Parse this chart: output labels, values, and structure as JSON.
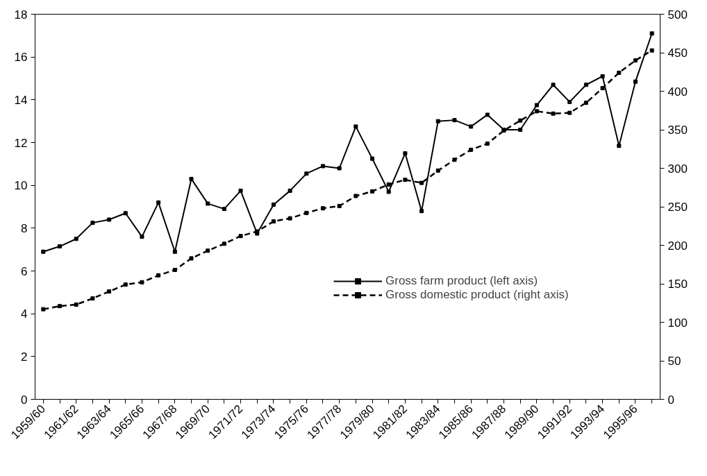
{
  "chart_data": {
    "type": "line",
    "categories": [
      "1959/60",
      null,
      "1961/62",
      null,
      "1963/64",
      null,
      "1965/66",
      null,
      "1967/68",
      null,
      "1969/70",
      null,
      "1971/72",
      null,
      "1973/74",
      null,
      "1975/76",
      null,
      "1977/78",
      null,
      "1979/80",
      null,
      "1981/82",
      null,
      "1983/84",
      null,
      "1985/86",
      null,
      "1987/88",
      null,
      "1989/90",
      null,
      "1991/92",
      null,
      "1993/94",
      null,
      "1995/96",
      null
    ],
    "series": [
      {
        "name": "Gross farm product (left axis)",
        "color": "#000000",
        "line_style": "solid",
        "values": [
          6.9,
          7.15,
          7.5,
          8.25,
          8.4,
          8.7,
          7.6,
          9.2,
          6.9,
          10.3,
          9.15,
          8.9,
          9.75,
          7.75,
          9.1,
          9.75,
          10.55,
          10.9,
          10.8,
          12.75,
          11.25,
          9.7,
          11.5,
          8.8,
          13.0,
          13.05,
          12.75,
          13.3,
          12.6,
          12.6,
          13.75,
          14.7,
          13.9,
          14.7,
          15.1,
          11.85,
          14.85,
          17.1
        ]
      },
      {
        "name": "Gross domestic product (right axis)",
        "color": "#000000",
        "line_style": "dashed",
        "axis": "y2",
        "values": [
          117,
          121,
          123,
          131,
          140,
          149,
          152,
          161,
          168,
          183,
          193,
          202,
          212,
          218,
          231,
          235,
          242,
          248,
          251,
          264,
          270,
          279,
          285,
          281,
          297,
          311,
          324,
          332,
          349,
          362,
          374,
          371,
          372,
          385,
          404,
          424,
          440,
          453
        ]
      }
    ],
    "ylim": [
      0,
      18
    ],
    "yticks": [
      0,
      2,
      4,
      6,
      8,
      10,
      12,
      14,
      16,
      18
    ],
    "y2lim": [
      0,
      500
    ],
    "y2ticks": [
      0,
      50,
      100,
      150,
      200,
      250,
      300,
      350,
      400,
      450,
      500
    ],
    "marker": "square",
    "grid": false,
    "legend": "right"
  }
}
